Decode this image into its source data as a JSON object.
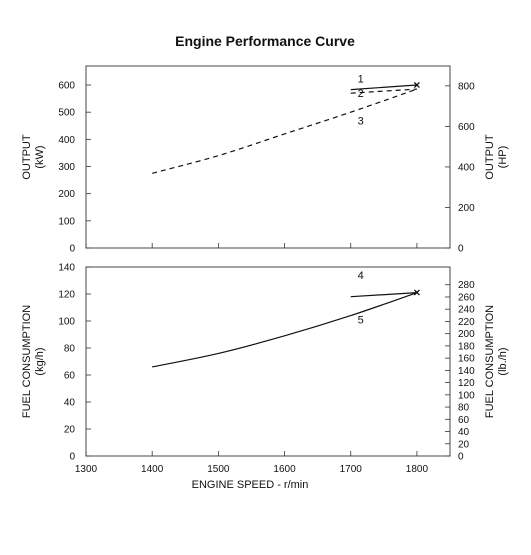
{
  "chart_data": {
    "type": "line",
    "title": "Engine Performance Curve",
    "xlabel": "ENGINE SPEED - r/min",
    "xlim": [
      1300,
      1850
    ],
    "xticks": [
      1300,
      1400,
      1500,
      1600,
      1700,
      1800
    ],
    "panels": [
      {
        "name": "output",
        "ylabel_left": [
          "OUTPUT",
          "(kW)"
        ],
        "ylabel_right": [
          "OUTPUT",
          "(HP)"
        ],
        "ylim": [
          0,
          670
        ],
        "yticks": [
          0,
          100,
          200,
          300,
          400,
          500,
          600
        ],
        "ylim_right": [
          0,
          898
        ],
        "yticks_right": [
          0,
          200,
          400,
          600,
          800
        ],
        "series": [
          {
            "label": "1",
            "style": "solid",
            "x": [
              1700,
              1800
            ],
            "y": [
              583,
              600
            ]
          },
          {
            "label": "2",
            "style": "dashed",
            "x": [
              1700,
              1800
            ],
            "y": [
              570,
              585
            ]
          },
          {
            "label": "3",
            "style": "dashed",
            "x": [
              1400,
              1500,
              1600,
              1700,
              1800
            ],
            "y": [
              275,
              340,
              420,
              500,
              585
            ]
          }
        ],
        "annotations": [
          {
            "text": "1",
            "x": 1715,
            "y": 610
          },
          {
            "text": "2",
            "x": 1715,
            "y": 555
          },
          {
            "text": "3",
            "x": 1715,
            "y": 455
          }
        ],
        "marker": {
          "symbol": "×",
          "x": 1800,
          "y": 600
        }
      },
      {
        "name": "fuel",
        "ylabel_left": [
          "FUEL CONSUMPTION",
          "(kg/h)"
        ],
        "ylabel_right": [
          "FUEL CONSUMPTION",
          "(lb./h)"
        ],
        "ylim": [
          0,
          140
        ],
        "yticks": [
          0,
          20,
          40,
          60,
          80,
          100,
          120,
          140
        ],
        "ylim_right": [
          0,
          309
        ],
        "yticks_right": [
          0,
          20,
          40,
          60,
          80,
          100,
          120,
          140,
          160,
          180,
          200,
          220,
          240,
          260,
          280
        ],
        "series": [
          {
            "label": "4",
            "style": "solid",
            "x": [
              1700,
              1800
            ],
            "y": [
              118,
              121
            ]
          },
          {
            "label": "5",
            "style": "solid",
            "x": [
              1400,
              1500,
              1600,
              1700,
              1800
            ],
            "y": [
              66,
              76,
              89,
              104,
              121
            ]
          }
        ],
        "annotations": [
          {
            "text": "4",
            "x": 1715,
            "y": 131
          },
          {
            "text": "5",
            "x": 1715,
            "y": 98
          }
        ],
        "marker": {
          "symbol": "×",
          "x": 1800,
          "y": 121
        }
      }
    ]
  }
}
